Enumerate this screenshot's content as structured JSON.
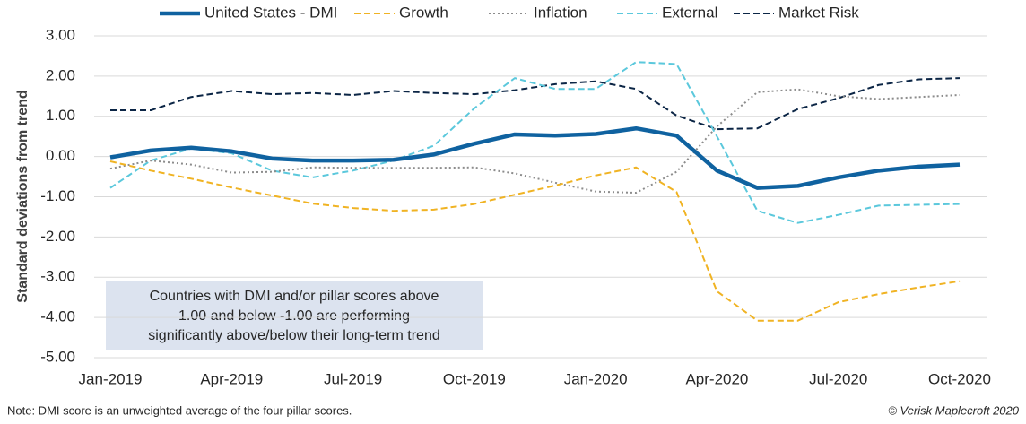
{
  "chart_data": {
    "type": "line",
    "y_axis_label": "Standard deviations from trend",
    "categories": [
      "Jan-2019",
      null,
      null,
      "Apr-2019",
      null,
      null,
      "Jul-2019",
      null,
      null,
      "Oct-2019",
      null,
      null,
      "Jan-2020",
      null,
      null,
      "Apr-2020",
      null,
      null,
      "Jul-2020",
      null,
      null,
      "Oct-2020"
    ],
    "series": [
      {
        "name": "United States - DMI",
        "color": "#0f62a0",
        "style": "solid",
        "values": [
          -0.02,
          0.15,
          0.22,
          0.13,
          -0.05,
          -0.1,
          -0.1,
          -0.08,
          0.05,
          0.32,
          0.55,
          0.52,
          0.56,
          0.7,
          0.52,
          -0.35,
          -0.78,
          -0.73,
          -0.52,
          -0.35,
          -0.25,
          -0.2
        ]
      },
      {
        "name": "Growth",
        "color": "#f0b323",
        "style": "dashed",
        "values": [
          -0.12,
          -0.35,
          -0.55,
          -0.77,
          -0.97,
          -1.17,
          -1.28,
          -1.35,
          -1.32,
          -1.18,
          -0.95,
          -0.72,
          -0.47,
          -0.27,
          -0.88,
          -3.35,
          -4.08,
          -4.08,
          -3.62,
          -3.42,
          -3.25,
          -3.1
        ]
      },
      {
        "name": "Inflation",
        "color": "#8c8c8c",
        "style": "dotted",
        "values": [
          -0.3,
          -0.1,
          -0.2,
          -0.4,
          -0.38,
          -0.27,
          -0.28,
          -0.28,
          -0.28,
          -0.27,
          -0.42,
          -0.65,
          -0.87,
          -0.9,
          -0.38,
          0.75,
          1.6,
          1.67,
          1.5,
          1.43,
          1.48,
          1.53
        ]
      },
      {
        "name": "External",
        "color": "#5bc8dc",
        "style": "dashed",
        "values": [
          -0.78,
          -0.1,
          0.2,
          0.08,
          -0.35,
          -0.52,
          -0.35,
          -0.1,
          0.27,
          1.2,
          1.95,
          1.68,
          1.68,
          2.35,
          2.3,
          0.5,
          -1.35,
          -1.65,
          -1.45,
          -1.22,
          -1.2,
          -1.18
        ]
      },
      {
        "name": "Market Risk",
        "color": "#0b2545",
        "style": "dashed",
        "values": [
          1.15,
          1.15,
          1.48,
          1.63,
          1.55,
          1.58,
          1.53,
          1.63,
          1.58,
          1.55,
          1.65,
          1.8,
          1.87,
          1.68,
          1.02,
          0.68,
          0.7,
          1.18,
          1.45,
          1.78,
          1.92,
          1.95
        ]
      }
    ],
    "ylim": [
      -5,
      3
    ],
    "yticks": [
      {
        "value": 3,
        "label": "3.00"
      },
      {
        "value": 2,
        "label": "2.00"
      },
      {
        "value": 1,
        "label": "1.00"
      },
      {
        "value": 0,
        "label": "0.00"
      },
      {
        "value": -1,
        "label": "-1.00"
      },
      {
        "value": -2,
        "label": "-2.00"
      },
      {
        "value": -3,
        "label": "-3.00"
      },
      {
        "value": -4,
        "label": "-4.00"
      },
      {
        "value": -5,
        "label": "-5.00"
      }
    ],
    "grid": true,
    "legend": "top",
    "annotation": [
      "Countries with DMI and/or pillar scores above",
      "1.00 and below -1.00 are performing",
      "significantly above/below their long-term trend"
    ],
    "note": "Note: DMI score is an unweighted average of the four pillar scores.",
    "credit": "© Verisk Maplecroft 2020"
  }
}
